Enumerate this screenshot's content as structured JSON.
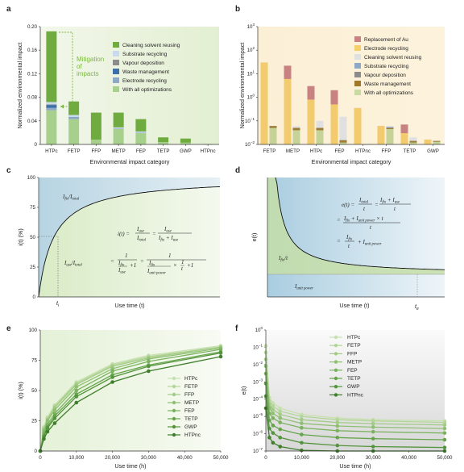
{
  "panels": {
    "a": {
      "label": "a"
    },
    "b": {
      "label": "b"
    },
    "c": {
      "label": "c"
    },
    "d": {
      "label": "d"
    },
    "e": {
      "label": "e"
    },
    "f": {
      "label": "f"
    }
  },
  "chart_data": [
    {
      "id": "a",
      "type": "bar",
      "xlabel": "Environmental impact category",
      "ylabel": "Normalized environmental impact",
      "ylim": [
        0,
        0.2
      ],
      "yticks": [
        "0",
        "0.04",
        "0.08",
        "0.12",
        "0.16",
        "0.20"
      ],
      "categories": [
        "HTPc",
        "FETP",
        "FFP",
        "METP",
        "FEP",
        "TETP",
        "GWP",
        "HTPnc"
      ],
      "series": [
        {
          "name": "With all optimizations",
          "color": "#a8d08d",
          "values": [
            0.058,
            0.043,
            0.008,
            0.026,
            0.019,
            0.004,
            0.003,
            0.0002
          ]
        },
        {
          "name": "Electrode recycling",
          "color": "#8ea9c8",
          "values": [
            0.004,
            0.002,
            0.0,
            0.001,
            0.001,
            0.0,
            0.0,
            0.0
          ]
        },
        {
          "name": "Waste management",
          "color": "#3d6fa8",
          "values": [
            0.005,
            0.001,
            0.0,
            0.0,
            0.0,
            0.0,
            0.0,
            0.0
          ]
        },
        {
          "name": "Vapour deposition",
          "color": "#8c8c8c",
          "values": [
            0.001,
            0.0,
            0.0,
            0.0,
            0.0,
            0.0,
            0.0,
            0.0
          ]
        },
        {
          "name": "Substrate recycling",
          "color": "#c9d9ee",
          "values": [
            0.004,
            0.004,
            0.0,
            0.002,
            0.002,
            0.0,
            0.0,
            0.0
          ]
        },
        {
          "name": "Cleaning solvent reusing",
          "color": "#6fab3e",
          "values": [
            0.12,
            0.023,
            0.046,
            0.025,
            0.021,
            0.008,
            0.007,
            0.0003
          ]
        }
      ],
      "annotation": "Mitigation of impacts"
    },
    {
      "id": "b",
      "type": "bar",
      "scale": "log",
      "xlabel": "Environmental impact category",
      "ylabel": "Normalized environmental impact",
      "ylim": [
        0.01,
        1000
      ],
      "categories": [
        "FETP",
        "METP",
        "HTPc",
        "FEP",
        "HTPnc",
        "FFP",
        "TETP",
        "GWP"
      ],
      "series_names": [
        "Replacement of Au",
        "Electrode recycling",
        "Cleaning solvent reusing",
        "Substrate recycling",
        "Vapour deposition",
        "Waste management",
        "With all optimizations"
      ],
      "series_colors": [
        "#c98282",
        "#f5cf6e",
        "#e0e0e0",
        "#8ea9c8",
        "#8c8c8c",
        "#a07a2a",
        "#c9dba3"
      ],
      "bars": [
        [
          30,
          30,
          0.06,
          0.06,
          0.06,
          0.06,
          0.05
        ],
        [
          22,
          6,
          0.06,
          0.05,
          0.05,
          0.05,
          0.04
        ],
        [
          3,
          0.8,
          0.1,
          0.05,
          0.05,
          0.05,
          0.04
        ],
        [
          2,
          0.5,
          0.15,
          0.015,
          0.015,
          0.015,
          0.012
        ],
        [
          0.35,
          0.35,
          0.01,
          0.01,
          0.01,
          0.01,
          0.01
        ],
        [
          0.06,
          0.06,
          0.06,
          0.055,
          0.05,
          0.05,
          0.045
        ],
        [
          0.07,
          0.03,
          0.02,
          0.014,
          0.014,
          0.014,
          0.012
        ],
        [
          0.016,
          0.016,
          0.014,
          0.014,
          0.014,
          0.014,
          0.013
        ]
      ]
    },
    {
      "id": "c",
      "type": "line",
      "xlabel": "Use time (t)",
      "ylabel": "i(t) (%)",
      "ylim": [
        0,
        100
      ],
      "yticks": [
        "0",
        "25",
        "50",
        "75",
        "100"
      ],
      "marker": "t",
      "marker_sub": "i",
      "region_top": "I_fix/I_total",
      "region_bottom": "I_use/I_total",
      "equation": "i(t) = I_use/I_total = I_use/(I_fix + I_use) = 1/(I_fix/I_use + 1) = 1/(I_fix/I_unit power × 1/t + 1)"
    },
    {
      "id": "d",
      "type": "line",
      "xlabel": "Use time (t)",
      "ylabel": "e(t)",
      "marker": "t",
      "marker_sub": "e",
      "region_mid": "I_fix/t",
      "region_bottom": "I_unit power",
      "equation": "e(t) = I_total/t = (I_fix + I_use)/t = (I_fix + I_unit power × t)/t = I_fix/t + I_unit power"
    },
    {
      "id": "e",
      "type": "line",
      "xlabel": "Use time (h)",
      "ylabel": "i(t) (%)",
      "xlim": [
        0,
        50000
      ],
      "ylim": [
        0,
        100
      ],
      "xticks": [
        "0",
        "10,000",
        "20,000",
        "30,000",
        "40,000",
        "50,000"
      ],
      "yticks": [
        "0",
        "25",
        "50",
        "75",
        "100"
      ],
      "x": [
        0,
        1000,
        2000,
        4000,
        10000,
        20000,
        30000,
        50000
      ],
      "series": [
        {
          "name": "HTPc",
          "values": [
            0,
            20,
            28,
            38,
            57,
            72,
            79,
            87
          ]
        },
        {
          "name": "FETP",
          "values": [
            0,
            19,
            27,
            37,
            56,
            71,
            78,
            86
          ]
        },
        {
          "name": "FFP",
          "values": [
            0,
            18,
            26,
            36,
            55,
            70,
            77,
            86
          ]
        },
        {
          "name": "METP",
          "values": [
            0,
            17,
            25,
            34,
            53,
            68,
            76,
            85
          ]
        },
        {
          "name": "FEP",
          "values": [
            0,
            15,
            22,
            31,
            50,
            66,
            74,
            84
          ]
        },
        {
          "name": "TETP",
          "values": [
            0,
            13,
            20,
            29,
            47,
            63,
            71,
            82
          ]
        },
        {
          "name": "GWP",
          "values": [
            0,
            12,
            19,
            27,
            45,
            61,
            70,
            81
          ]
        },
        {
          "name": "HTPnc",
          "values": [
            0,
            10,
            16,
            23,
            40,
            57,
            66,
            78
          ]
        }
      ],
      "colors": [
        "#c8e0b0",
        "#b5d69a",
        "#a2cb86",
        "#8fbf72",
        "#7bb25f",
        "#67a44e",
        "#55943e",
        "#3f7f2c"
      ]
    },
    {
      "id": "f",
      "type": "line",
      "scale": "log",
      "xlabel": "Use time (h)",
      "ylabel": "e(t)",
      "xlim": [
        0,
        50000
      ],
      "ylim": [
        1e-07,
        1
      ],
      "xticks": [
        "0",
        "10,000",
        "20,000",
        "30,000",
        "40,000",
        "50,000"
      ],
      "yticks": [
        "10⁰",
        "10⁻¹",
        "10⁻²",
        "10⁻³",
        "10⁻⁴",
        "10⁻⁵",
        "10⁻⁶",
        "10⁻⁷"
      ],
      "x": [
        0,
        1000,
        2000,
        4000,
        10000,
        20000,
        30000,
        50000
      ],
      "series": [
        {
          "name": "HTPc",
          "values": [
            0.12,
            0.00012,
            6e-05,
            3e-05,
            1.3e-05,
            8e-06,
            6.5e-06,
            5.5e-06
          ]
        },
        {
          "name": "FETP",
          "values": [
            0.05,
            8e-05,
            4e-05,
            2e-05,
            1e-05,
            6.5e-06,
            5.5e-06,
            4.5e-06
          ]
        },
        {
          "name": "FFP",
          "values": [
            0.02,
            5e-05,
            2.5e-05,
            1.3e-05,
            6.5e-06,
            4.5e-06,
            3.8e-06,
            3.2e-06
          ]
        },
        {
          "name": "METP",
          "values": [
            0.008,
            3e-05,
            1.5e-05,
            8e-06,
            4e-06,
            2.8e-06,
            2.4e-06,
            2e-06
          ]
        },
        {
          "name": "FEP",
          "values": [
            0.003,
            1.5e-05,
            8e-06,
            4.5e-06,
            2.2e-06,
            1.5e-06,
            1.3e-06,
            1.1e-06
          ]
        },
        {
          "name": "TETP",
          "values": [
            0.0008,
            6e-06,
            3e-06,
            1.8e-06,
            9e-07,
            6e-07,
            5.2e-07,
            4.5e-07
          ]
        },
        {
          "name": "GWP",
          "values": [
            0.00015,
            2e-06,
            1.1e-06,
            6e-07,
            3e-07,
            2.1e-07,
            1.8e-07,
            1.6e-07
          ]
        },
        {
          "name": "HTPnc",
          "values": [
            3e-05,
            6e-07,
            3e-07,
            1.8e-07,
            1.1e-07,
            9e-08,
            8.5e-08,
            8e-08
          ]
        }
      ],
      "colors": [
        "#c8e0b0",
        "#b5d69a",
        "#a2cb86",
        "#8fbf72",
        "#7bb25f",
        "#67a44e",
        "#55943e",
        "#3f7f2c"
      ]
    }
  ]
}
